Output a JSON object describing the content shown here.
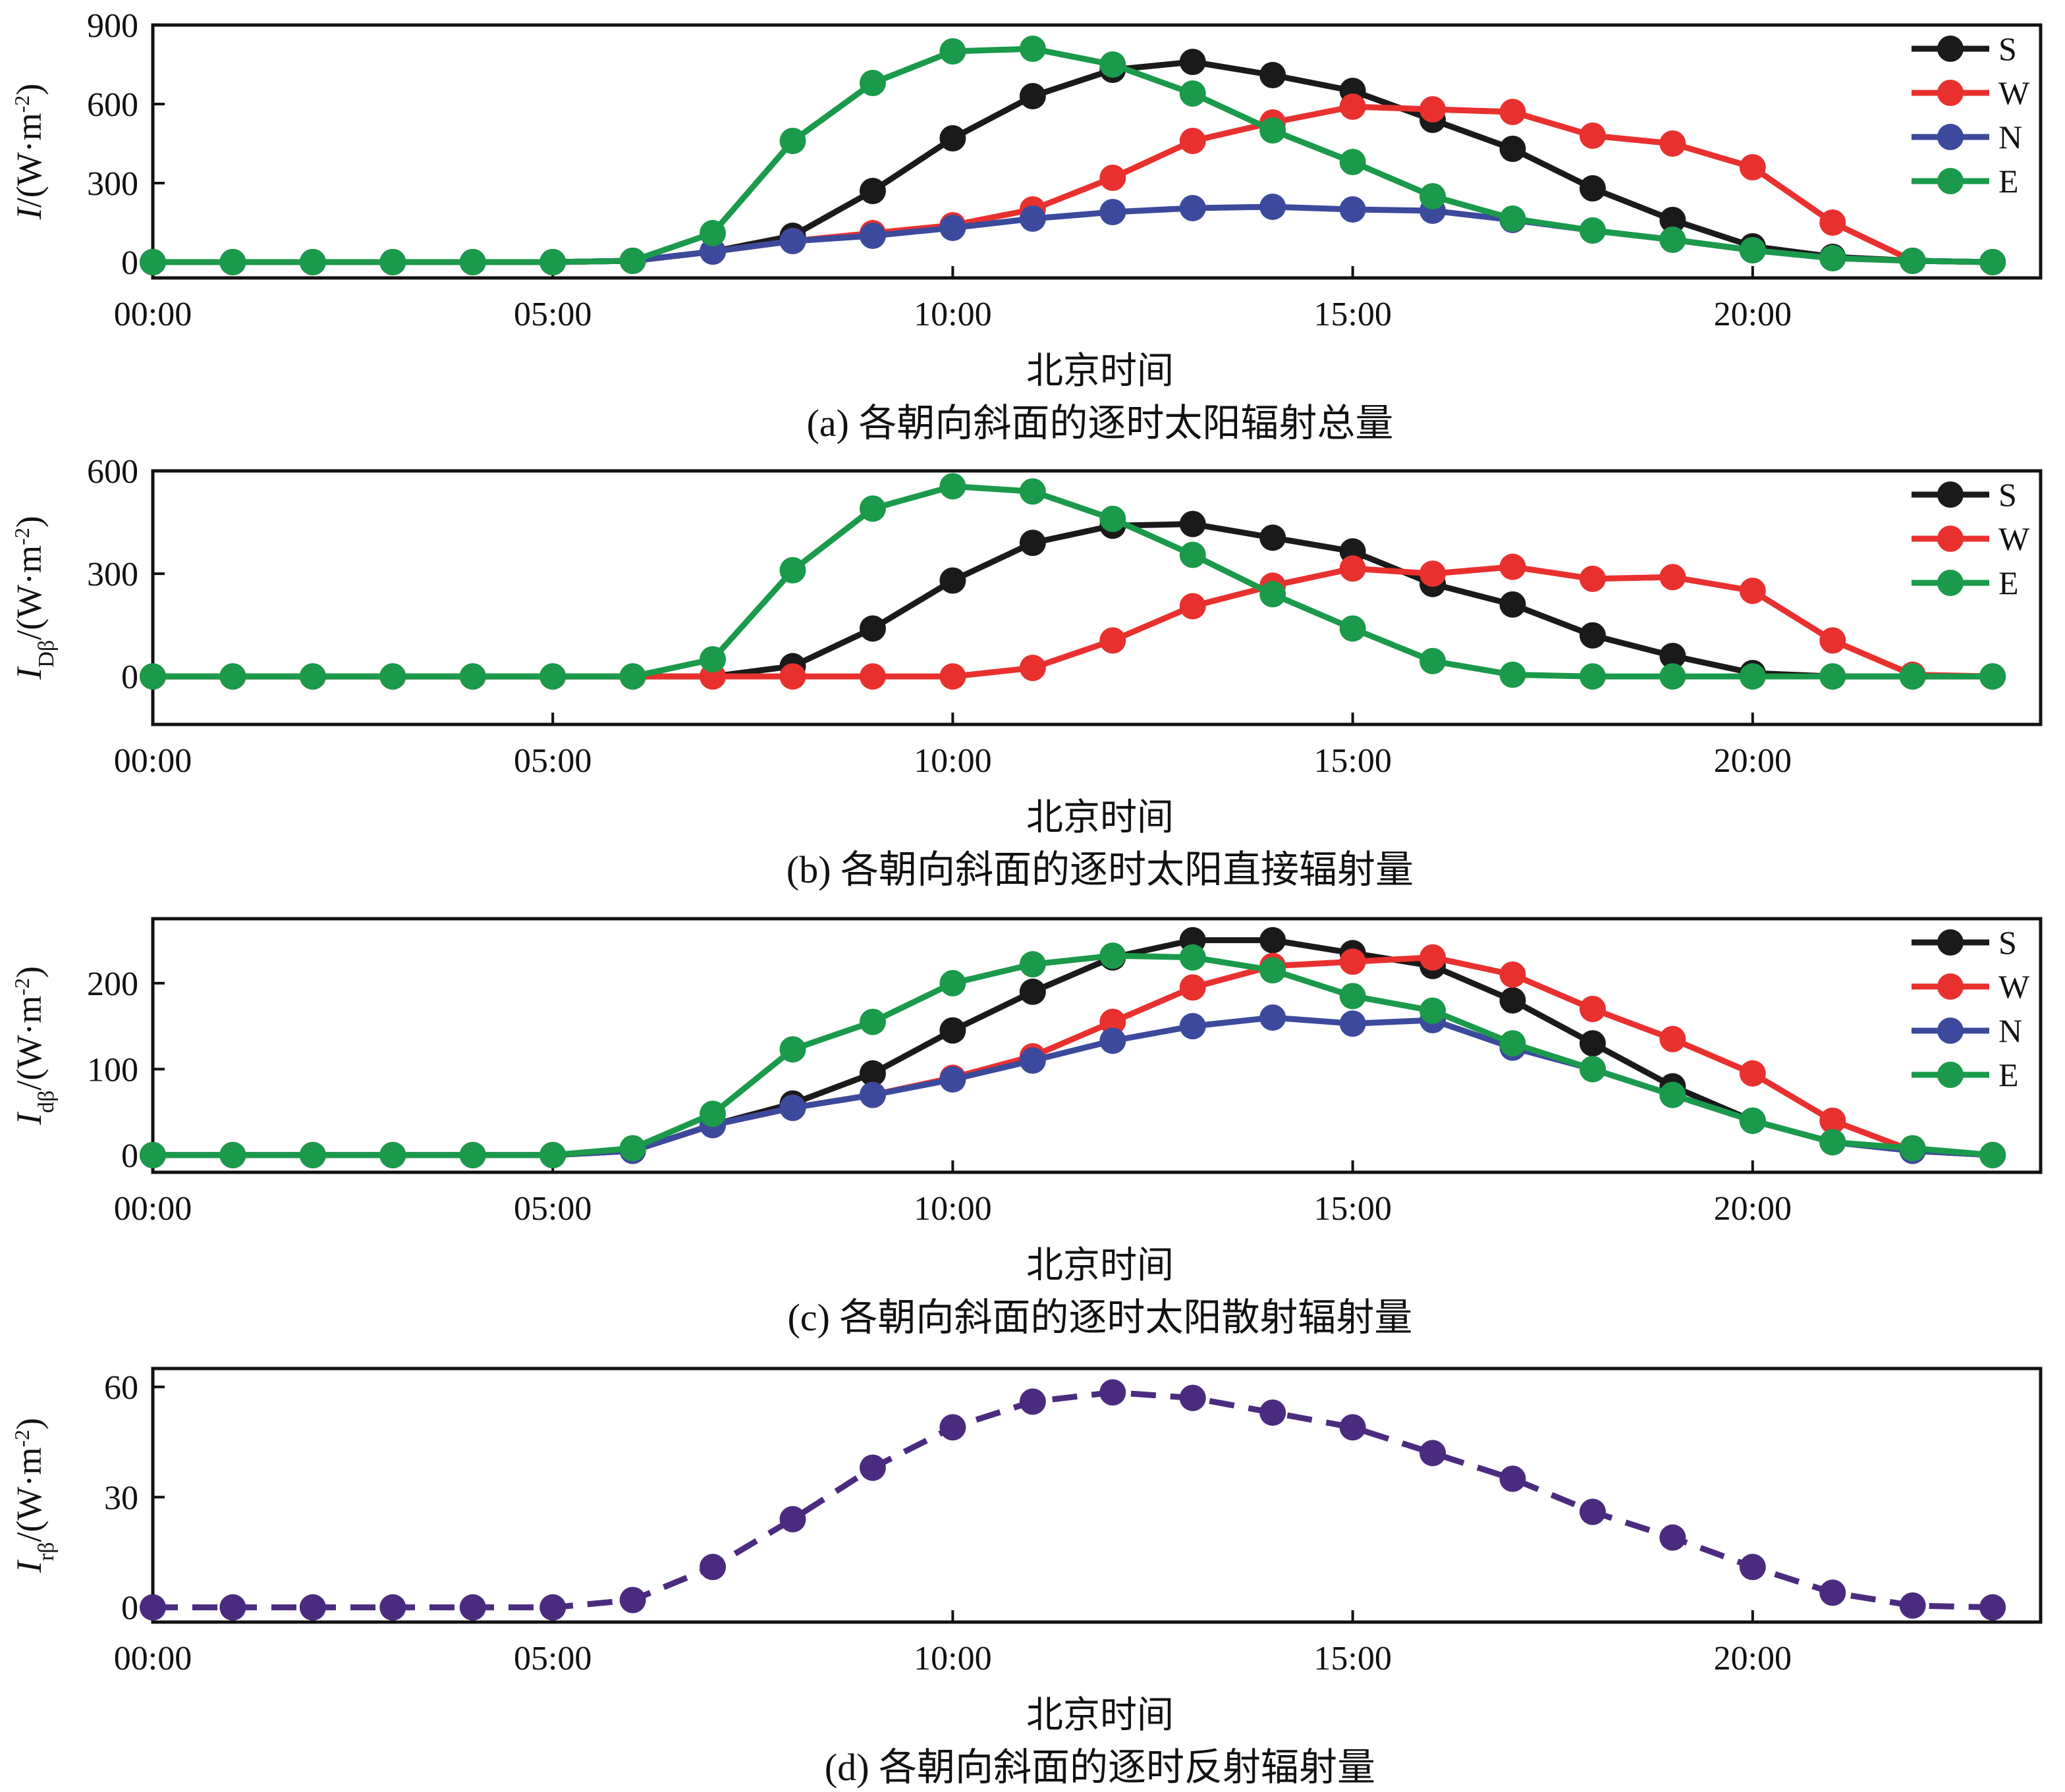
{
  "chart_data": [
    {
      "id": "a",
      "type": "line",
      "caption": "(a) 各朝向斜面的逐时太阳辐射总量",
      "xlabel": "北京时间",
      "ylabel": {
        "main": "I",
        "sub": "",
        "unit": "/(W·m",
        "sup": "-2",
        "close": ")"
      },
      "x": [
        0,
        1,
        2,
        3,
        4,
        5,
        6,
        7,
        8,
        9,
        10,
        11,
        12,
        13,
        14,
        15,
        16,
        17,
        18,
        19,
        20,
        21,
        22,
        23
      ],
      "xticks": [
        {
          "v": 0,
          "label": "00:00"
        },
        {
          "v": 5,
          "label": "05:00"
        },
        {
          "v": 10,
          "label": "10:00"
        },
        {
          "v": 15,
          "label": "15:00"
        },
        {
          "v": 20,
          "label": "20:00"
        }
      ],
      "xlim": [
        0,
        23.6
      ],
      "ylim": [
        -60,
        900
      ],
      "yticks": [
        {
          "v": 0,
          "label": "0"
        },
        {
          "v": 300,
          "label": "300"
        },
        {
          "v": 600,
          "label": "600"
        },
        {
          "v": 900,
          "label": "900"
        }
      ],
      "legend_position": "top-right",
      "series": [
        {
          "name": "S",
          "color": "#1a1a1a",
          "values": [
            0,
            0,
            0,
            0,
            0,
            0,
            5,
            40,
            100,
            270,
            470,
            630,
            730,
            760,
            710,
            650,
            540,
            430,
            280,
            160,
            60,
            20,
            5,
            0
          ]
        },
        {
          "name": "W",
          "color": "#e8312f",
          "values": [
            0,
            0,
            0,
            0,
            0,
            0,
            5,
            40,
            80,
            110,
            140,
            200,
            320,
            460,
            530,
            590,
            580,
            570,
            480,
            450,
            360,
            150,
            5,
            0
          ]
        },
        {
          "name": "N",
          "color": "#3b4a9c",
          "values": [
            0,
            0,
            0,
            0,
            0,
            0,
            5,
            40,
            80,
            100,
            130,
            165,
            190,
            205,
            210,
            200,
            195,
            160,
            120,
            85,
            45,
            15,
            5,
            0
          ]
        },
        {
          "name": "E",
          "color": "#1a9a4a",
          "values": [
            0,
            0,
            0,
            0,
            0,
            0,
            5,
            110,
            460,
            680,
            800,
            810,
            750,
            640,
            500,
            380,
            250,
            165,
            120,
            85,
            45,
            15,
            5,
            0
          ]
        }
      ]
    },
    {
      "id": "b",
      "type": "line",
      "caption": "(b) 各朝向斜面的逐时太阳直接辐射量",
      "xlabel": "北京时间",
      "ylabel": {
        "main": "I",
        "sub": "Dβ",
        "unit": "/(W·m",
        "sup": "-2",
        "close": ")"
      },
      "x": [
        0,
        1,
        2,
        3,
        4,
        5,
        6,
        7,
        8,
        9,
        10,
        11,
        12,
        13,
        14,
        15,
        16,
        17,
        18,
        19,
        20,
        21,
        22,
        23
      ],
      "xticks": [
        {
          "v": 0,
          "label": "00:00"
        },
        {
          "v": 5,
          "label": "05:00"
        },
        {
          "v": 10,
          "label": "10:00"
        },
        {
          "v": 15,
          "label": "15:00"
        },
        {
          "v": 20,
          "label": "20:00"
        }
      ],
      "xlim": [
        0,
        23.6
      ],
      "ylim": [
        -140,
        600
      ],
      "yticks": [
        {
          "v": 0,
          "label": "0"
        },
        {
          "v": 300,
          "label": "300"
        },
        {
          "v": 600,
          "label": "600"
        }
      ],
      "legend_position": "top-right",
      "series": [
        {
          "name": "S",
          "color": "#1a1a1a",
          "values": [
            0,
            0,
            0,
            0,
            0,
            0,
            0,
            0,
            30,
            140,
            280,
            390,
            440,
            445,
            405,
            365,
            270,
            210,
            120,
            60,
            10,
            0,
            0,
            0
          ]
        },
        {
          "name": "W",
          "color": "#e8312f",
          "values": [
            0,
            0,
            0,
            0,
            0,
            0,
            0,
            0,
            0,
            0,
            0,
            25,
            105,
            205,
            265,
            315,
            300,
            320,
            285,
            290,
            250,
            105,
            5,
            0
          ]
        },
        {
          "name": "E",
          "color": "#1a9a4a",
          "values": [
            0,
            0,
            0,
            0,
            0,
            0,
            0,
            50,
            310,
            490,
            555,
            540,
            460,
            355,
            240,
            140,
            45,
            5,
            0,
            0,
            0,
            0,
            0,
            0
          ]
        }
      ]
    },
    {
      "id": "c",
      "type": "line",
      "caption": "(c) 各朝向斜面的逐时太阳散射辐射量",
      "xlabel": "北京时间",
      "ylabel": {
        "main": "I",
        "sub": "dβ",
        "unit": "/(W·m",
        "sup": "-2",
        "close": ")"
      },
      "x": [
        0,
        1,
        2,
        3,
        4,
        5,
        6,
        7,
        8,
        9,
        10,
        11,
        12,
        13,
        14,
        15,
        16,
        17,
        18,
        19,
        20,
        21,
        22,
        23
      ],
      "xticks": [
        {
          "v": 0,
          "label": "00:00"
        },
        {
          "v": 5,
          "label": "05:00"
        },
        {
          "v": 10,
          "label": "10:00"
        },
        {
          "v": 15,
          "label": "15:00"
        },
        {
          "v": 20,
          "label": "20:00"
        }
      ],
      "xlim": [
        0,
        23.6
      ],
      "ylim": [
        -20,
        275
      ],
      "yticks": [
        {
          "v": 0,
          "label": "0"
        },
        {
          "v": 100,
          "label": "100"
        },
        {
          "v": 200,
          "label": "200"
        }
      ],
      "legend_position": "top-right",
      "series": [
        {
          "name": "S",
          "color": "#1a1a1a",
          "values": [
            0,
            0,
            0,
            0,
            0,
            0,
            5,
            35,
            60,
            95,
            145,
            190,
            230,
            250,
            250,
            235,
            220,
            180,
            130,
            80,
            40,
            15,
            5,
            0
          ]
        },
        {
          "name": "W",
          "color": "#e8312f",
          "values": [
            0,
            0,
            0,
            0,
            0,
            0,
            5,
            35,
            55,
            70,
            90,
            115,
            155,
            195,
            220,
            225,
            230,
            210,
            170,
            135,
            95,
            40,
            5,
            0
          ]
        },
        {
          "name": "N",
          "color": "#3b4a9c",
          "values": [
            0,
            0,
            0,
            0,
            0,
            0,
            5,
            35,
            55,
            70,
            88,
            110,
            133,
            150,
            160,
            153,
            157,
            125,
            100,
            70,
            40,
            15,
            5,
            0
          ]
        },
        {
          "name": "E",
          "color": "#1a9a4a",
          "values": [
            0,
            0,
            0,
            0,
            0,
            0,
            8,
            48,
            123,
            155,
            200,
            222,
            232,
            230,
            215,
            185,
            168,
            130,
            100,
            70,
            40,
            15,
            8,
            0
          ]
        }
      ]
    },
    {
      "id": "d",
      "type": "line",
      "caption": "(d) 各朝向斜面的逐时反射辐射量",
      "xlabel": "北京时间",
      "ylabel": {
        "main": "I",
        "sub": "rβ",
        "unit": "/(W·m",
        "sup": "-2",
        "close": ")"
      },
      "x": [
        0,
        1,
        2,
        3,
        4,
        5,
        6,
        7,
        8,
        9,
        10,
        11,
        12,
        13,
        14,
        15,
        16,
        17,
        18,
        19,
        20,
        21,
        22,
        23
      ],
      "xticks": [
        {
          "v": 0,
          "label": "00:00"
        },
        {
          "v": 5,
          "label": "05:00"
        },
        {
          "v": 10,
          "label": "10:00"
        },
        {
          "v": 15,
          "label": "15:00"
        },
        {
          "v": 20,
          "label": "20:00"
        }
      ],
      "xlim": [
        0,
        23.6
      ],
      "ylim": [
        -4,
        65
      ],
      "yticks": [
        {
          "v": 0,
          "label": "0"
        },
        {
          "v": 30,
          "label": "30"
        },
        {
          "v": 60,
          "label": "60"
        }
      ],
      "legend_position": "none",
      "series": [
        {
          "name": "",
          "color": "#4b2b7f",
          "dashed": true,
          "values": [
            0,
            0,
            0,
            0,
            0,
            0,
            2,
            11,
            24,
            38,
            49,
            56,
            58.5,
            57,
            53,
            49,
            42,
            35,
            26,
            19,
            11,
            4,
            0.5,
            0
          ]
        }
      ]
    }
  ]
}
